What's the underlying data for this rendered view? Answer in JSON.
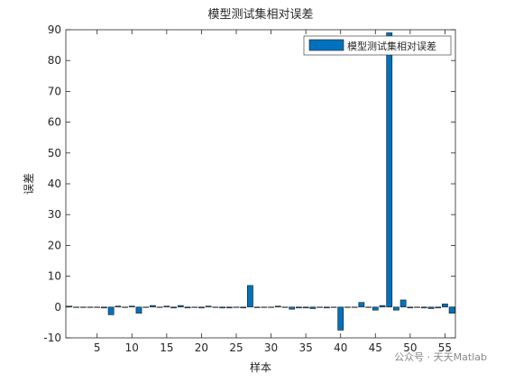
{
  "chart_data": {
    "type": "bar",
    "title": "模型测试集相对误差",
    "xlabel": "样本",
    "ylabel": "误差",
    "x": [
      1,
      2,
      3,
      4,
      5,
      6,
      7,
      8,
      9,
      10,
      11,
      12,
      13,
      14,
      15,
      16,
      17,
      18,
      19,
      20,
      21,
      22,
      23,
      24,
      25,
      26,
      27,
      28,
      29,
      30,
      31,
      32,
      33,
      34,
      35,
      36,
      37,
      38,
      39,
      40,
      41,
      42,
      43,
      44,
      45,
      46,
      47,
      48,
      49,
      50,
      51,
      52,
      53,
      54,
      55,
      56
    ],
    "series": [
      {
        "name": "模型测试集相对误差",
        "color": "#0072bd",
        "values": [
          0.3,
          0,
          0,
          0,
          0,
          -0.3,
          -2.5,
          0.3,
          0,
          0.3,
          -2,
          0,
          0.5,
          0,
          0.3,
          -0.3,
          0.5,
          -0.3,
          0,
          -0.3,
          0.3,
          0,
          -0.3,
          -0.3,
          0,
          -0.3,
          7,
          -0.2,
          0,
          0,
          0.3,
          0,
          -0.7,
          -0.3,
          -0.3,
          -0.5,
          0,
          -0.3,
          0,
          -7.5,
          0,
          0,
          1.5,
          0,
          -1,
          0.5,
          89,
          -1,
          2.3,
          -0.3,
          0,
          -0.3,
          -0.5,
          -0.3,
          1,
          -2
        ]
      }
    ],
    "xlim": [
      0.5,
      56.5
    ],
    "xticks": [
      5,
      10,
      15,
      20,
      25,
      30,
      35,
      40,
      45,
      50,
      55
    ],
    "ylim": [
      -10,
      90
    ],
    "yticks": [
      -10,
      0,
      10,
      20,
      30,
      40,
      50,
      60,
      70,
      80,
      90
    ],
    "legend": "top-right"
  },
  "watermark": "公众号 · 天天Matlab"
}
